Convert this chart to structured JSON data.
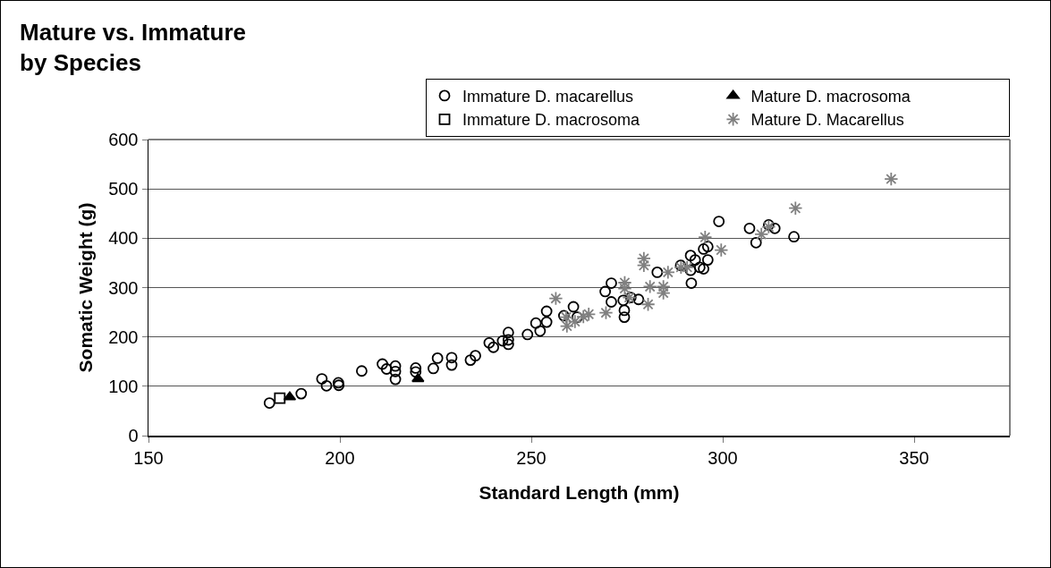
{
  "chart_data": {
    "type": "scatter",
    "title": "Mature vs. Immature\nby Species",
    "xlabel": "Standard Length (mm)",
    "ylabel": "Somatic Weight (g)",
    "xlim": [
      150,
      375
    ],
    "xticks": [
      150,
      200,
      250,
      300,
      350
    ],
    "ylim": [
      0,
      600
    ],
    "yticks": [
      0,
      100,
      200,
      300,
      400,
      500,
      600
    ],
    "grid": "y",
    "legend": "top right",
    "series": [
      {
        "name": "Immature D. macarellus",
        "color": "#000000",
        "marker": "circle",
        "x": [
          181.6,
          189.9,
          195.3,
          196.5,
          199.6,
          199.7,
          205.7,
          211.1,
          212.2,
          214.5,
          214.5,
          214.5,
          219.8,
          219.8,
          224.4,
          225.5,
          229.2,
          229.2,
          234.1,
          235.4,
          239,
          240.1,
          242.5,
          244,
          244,
          244,
          249,
          251.2,
          252.3,
          254,
          254,
          258.5,
          261,
          262,
          269.3,
          270.9,
          270.9,
          274,
          274.3,
          274.3,
          276,
          278,
          282.9,
          289,
          291.6,
          291.6,
          291.8,
          292.8,
          294,
          295,
          295,
          296.1,
          296.1,
          299,
          307,
          308.7,
          312,
          313.6,
          318.6
        ],
        "values": [
          66,
          85,
          115,
          101,
          107,
          102,
          131,
          145,
          135,
          141,
          114,
          130,
          137,
          129,
          136,
          157,
          158,
          143,
          153,
          162,
          188,
          179,
          192,
          209,
          194,
          185,
          205,
          228,
          212,
          230,
          252,
          243,
          261,
          240,
          292,
          309,
          271,
          274,
          254,
          240,
          280,
          276,
          331,
          345,
          365,
          335,
          309,
          356,
          341,
          338,
          378,
          383,
          356,
          434,
          420,
          391,
          427,
          420,
          403
        ]
      },
      {
        "name": "Mature D. macrosoma",
        "color": "#000000",
        "marker": "triangle",
        "x": [
          186.9,
          220.4
        ],
        "values": [
          78,
          115
        ]
      },
      {
        "name": "Immature D. macrosoma",
        "color": "#000000",
        "marker": "square",
        "x": [
          184.3
        ],
        "values": [
          76
        ]
      },
      {
        "name": "Mature D. Macarellus",
        "color": "#808080",
        "marker": "cross",
        "x": [
          256.4,
          259.1,
          259.3,
          261.4,
          263.6,
          265,
          269.5,
          274.4,
          274.4,
          275.6,
          279.4,
          279.4,
          280.5,
          281,
          284.5,
          284.5,
          285.7,
          289.1,
          290.7,
          295.4,
          299.6,
          310.1,
          312,
          319,
          344
        ],
        "values": [
          278,
          240,
          222,
          231,
          241,
          246,
          249,
          310,
          298,
          280,
          359,
          345,
          266,
          302,
          302,
          289,
          331,
          341,
          341,
          402,
          376,
          408,
          423,
          461,
          520
        ]
      }
    ]
  }
}
